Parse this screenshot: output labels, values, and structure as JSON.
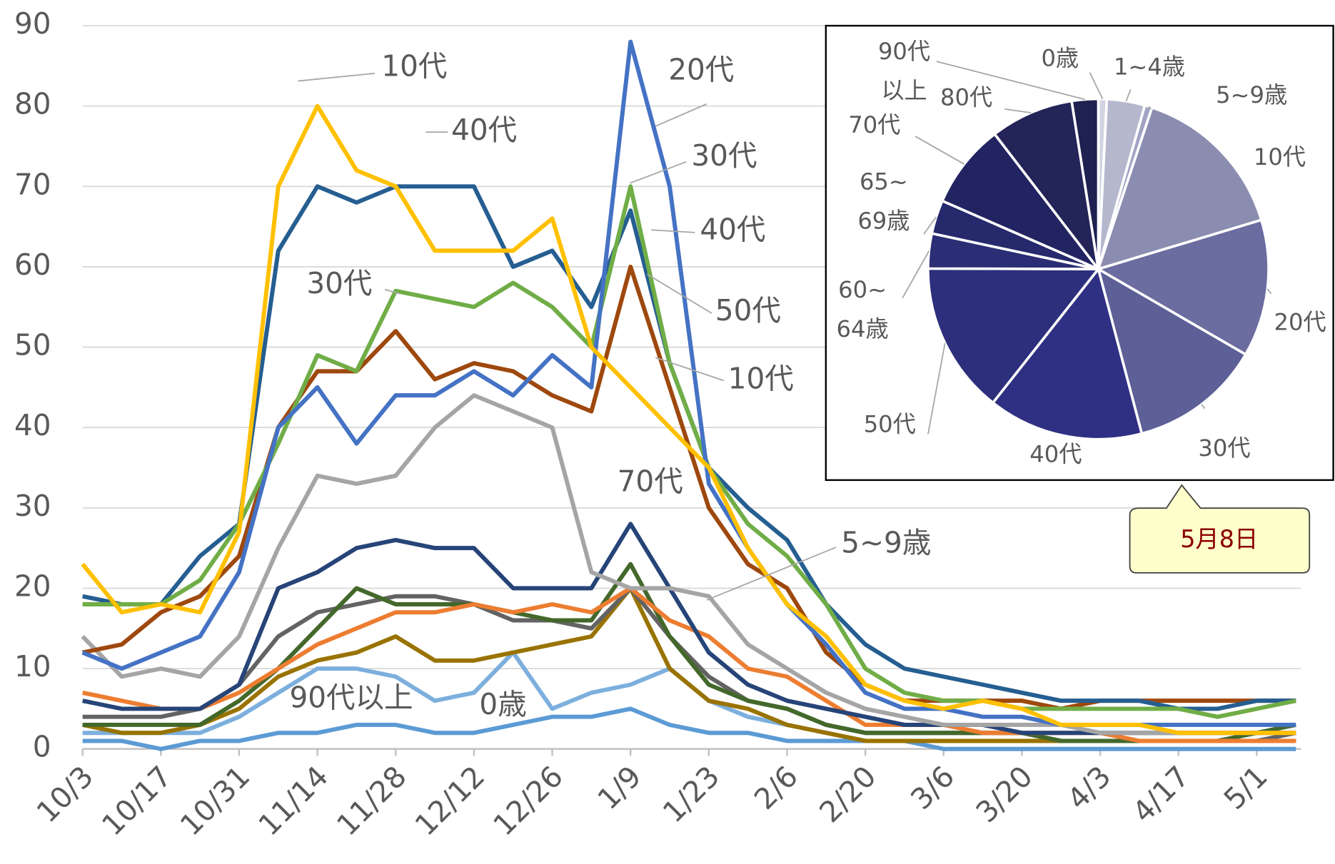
{
  "chart_data": [
    {
      "type": "line",
      "categories": [
        "10/3",
        null,
        "10/17",
        null,
        "10/31",
        null,
        "11/14",
        null,
        "11/28",
        null,
        "12/12",
        null,
        "12/26",
        null,
        "1/9",
        null,
        "1/23",
        null,
        "2/6",
        null,
        "2/20",
        null,
        "3/6",
        null,
        "3/20",
        null,
        "4/3",
        null,
        "4/17",
        null,
        "5/1",
        null
      ],
      "ylim": [
        0,
        90
      ],
      "yticks": [
        0,
        10,
        20,
        30,
        40,
        50,
        60,
        70,
        80,
        90
      ],
      "grid": true,
      "series": [
        {
          "color": "#ffc000",
          "values": [
            23,
            17,
            18,
            17,
            27,
            70,
            80,
            72,
            70,
            62,
            62,
            62,
            66,
            50,
            45,
            40,
            35,
            25,
            18,
            14,
            8,
            6,
            5,
            6,
            5,
            3,
            3,
            3,
            2,
            2,
            2,
            2
          ]
        },
        {
          "color": "#4472c4",
          "values": [
            12,
            10,
            12,
            14,
            22,
            40,
            45,
            38,
            44,
            44,
            47,
            44,
            49,
            45,
            88,
            70,
            33,
            25,
            18,
            13,
            7,
            5,
            5,
            4,
            4,
            3,
            3,
            3,
            3,
            3,
            3,
            3
          ]
        },
        {
          "color": "#70ad47",
          "values": [
            18,
            18,
            18,
            21,
            28,
            38,
            49,
            47,
            57,
            56,
            55,
            58,
            55,
            50,
            70,
            48,
            35,
            28,
            24,
            18,
            10,
            7,
            6,
            6,
            5,
            5,
            5,
            5,
            5,
            4,
            5,
            6
          ]
        },
        {
          "color": "#255e91",
          "values": [
            19,
            18,
            18,
            24,
            28,
            62,
            70,
            68,
            70,
            70,
            70,
            60,
            62,
            55,
            67,
            48,
            35,
            30,
            26,
            18,
            13,
            10,
            9,
            8,
            7,
            6,
            6,
            6,
            5,
            5,
            6,
            6
          ]
        },
        {
          "color": "#9e480e",
          "values": [
            12,
            13,
            17,
            19,
            24,
            40,
            47,
            47,
            52,
            46,
            48,
            47,
            44,
            42,
            60,
            45,
            30,
            23,
            20,
            12,
            8,
            6,
            6,
            6,
            6,
            5,
            6,
            6,
            6,
            6,
            6,
            6
          ]
        },
        {
          "color": "#a5a5a5",
          "values": [
            14,
            9,
            10,
            9,
            14,
            25,
            34,
            33,
            34,
            40,
            44,
            42,
            40,
            22,
            20,
            20,
            19,
            13,
            10,
            7,
            5,
            4,
            3,
            3,
            3,
            3,
            2,
            2,
            2,
            2,
            2,
            2
          ]
        },
        {
          "color": "#264478",
          "values": [
            6,
            5,
            5,
            5,
            8,
            20,
            22,
            25,
            26,
            25,
            25,
            20,
            20,
            20,
            28,
            20,
            12,
            8,
            6,
            5,
            4,
            3,
            3,
            3,
            2,
            2,
            2,
            2,
            2,
            2,
            2,
            2
          ]
        },
        {
          "color": "#ed7d31",
          "values": [
            7,
            6,
            5,
            5,
            7,
            10,
            13,
            15,
            17,
            17,
            18,
            17,
            18,
            17,
            20,
            16,
            14,
            10,
            9,
            6,
            3,
            3,
            3,
            2,
            2,
            2,
            2,
            1,
            1,
            1,
            1,
            1
          ]
        },
        {
          "color": "#43682b",
          "values": [
            3,
            3,
            3,
            3,
            6,
            10,
            15,
            20,
            18,
            18,
            18,
            17,
            16,
            16,
            23,
            14,
            8,
            6,
            5,
            3,
            2,
            2,
            2,
            2,
            2,
            1,
            1,
            1,
            1,
            1,
            2,
            3
          ]
        },
        {
          "color": "#636363",
          "values": [
            4,
            4,
            4,
            5,
            8,
            14,
            17,
            18,
            19,
            19,
            18,
            16,
            16,
            15,
            20,
            14,
            9,
            6,
            5,
            3,
            2,
            2,
            2,
            2,
            2,
            1,
            1,
            1,
            1,
            1,
            1,
            2
          ]
        },
        {
          "color": "#997300",
          "values": [
            3,
            2,
            2,
            3,
            5,
            9,
            11,
            12,
            14,
            11,
            11,
            12,
            13,
            14,
            20,
            10,
            6,
            5,
            3,
            2,
            1,
            1,
            1,
            1,
            1,
            1,
            1,
            1,
            1,
            1,
            1,
            1
          ]
        },
        {
          "color": "#7cafdd",
          "values": [
            2,
            2,
            2,
            2,
            4,
            7,
            10,
            10,
            9,
            6,
            7,
            12,
            5,
            7,
            8,
            10,
            6,
            4,
            3,
            2,
            1,
            1,
            1,
            1,
            1,
            1,
            1,
            1,
            1,
            1,
            1,
            1
          ]
        },
        {
          "color": "#5b9bd5",
          "values": [
            1,
            1,
            0,
            1,
            1,
            2,
            2,
            3,
            3,
            2,
            2,
            3,
            4,
            4,
            5,
            3,
            2,
            2,
            1,
            1,
            1,
            1,
            0,
            0,
            0,
            0,
            0,
            0,
            0,
            0,
            0,
            0
          ]
        }
      ],
      "annotations": [
        "10代",
        "40代",
        "20代",
        "30代",
        "40代",
        "30代",
        "50代",
        "10代",
        "70代",
        "5~9歳",
        "90代以上",
        "0歳"
      ],
      "callout": "5月8日"
    },
    {
      "type": "pie",
      "categories": [
        "0歳",
        "1~4歳",
        "5~9歳",
        "10代",
        "20代",
        "30代",
        "40代",
        "50代",
        [
          "60~",
          "64歳"
        ],
        [
          "65~",
          "69歳"
        ],
        "70代",
        "80代",
        [
          "90代",
          "以上"
        ]
      ],
      "values": [
        0.8,
        3.6,
        0.7,
        15.2,
        13,
        12.5,
        14.7,
        14.4,
        3.3,
        3.2,
        8,
        7.9,
        2.5
      ],
      "colors": [
        "#d3d4e2",
        "#b5b7cd",
        "#a0a3c2",
        "#8a8cb0",
        "#6b6c9f",
        "#5d5f97",
        "#2f3083",
        "#2d2f7c",
        "#2b2d75",
        "#27296d",
        "#222462",
        "#232458",
        "#1f2150"
      ]
    }
  ]
}
